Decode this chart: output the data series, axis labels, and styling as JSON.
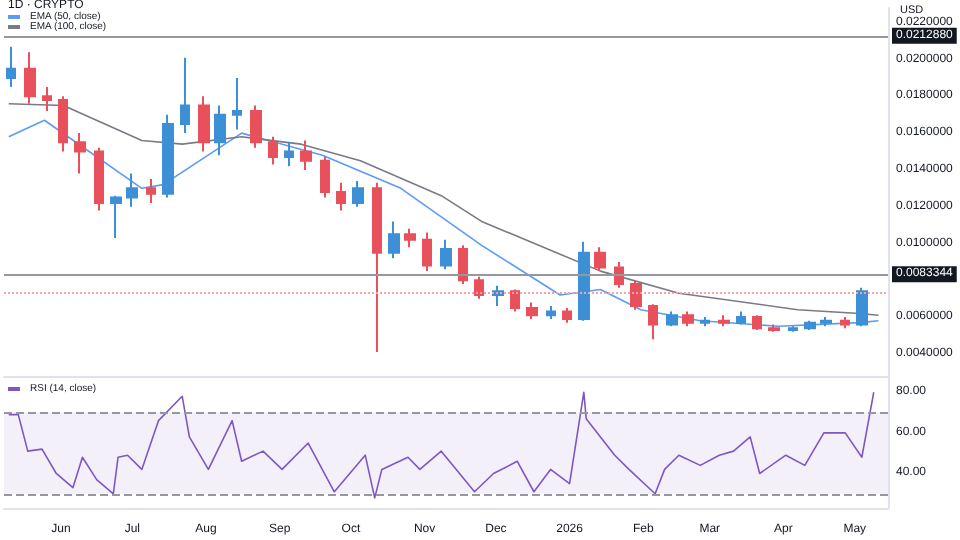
{
  "chart_data": [
    {
      "type": "candlestick",
      "title": "1D · CRYPTO",
      "ylabel": "USD",
      "x": [
        "2025-05-11",
        "2025-05-19",
        "2025-05-26",
        "2025-06-02",
        "2025-06-09",
        "2025-06-17",
        "2025-06-24",
        "2025-07-01",
        "2025-07-09",
        "2025-07-16",
        "2025-07-23",
        "2025-07-31",
        "2025-08-07",
        "2025-08-14",
        "2025-08-22",
        "2025-08-29",
        "2025-09-05",
        "2025-09-12",
        "2025-09-20",
        "2025-09-27",
        "2025-10-04",
        "2025-10-12",
        "2025-10-19",
        "2025-10-26",
        "2025-11-02",
        "2025-11-10",
        "2025-11-17",
        "2025-11-24",
        "2025-12-02",
        "2025-12-09",
        "2025-12-16",
        "2025-12-24",
        "2025-12-31",
        "2026-01-07",
        "2026-01-14",
        "2026-01-22",
        "2026-01-29",
        "2026-02-05",
        "2026-02-13",
        "2026-02-20",
        "2026-02-27",
        "2026-03-07",
        "2026-03-14",
        "2026-03-21",
        "2026-03-28",
        "2026-04-05",
        "2026-04-12",
        "2026-04-19",
        "2026-04-27",
        "2026-05-04"
      ],
      "ohlc": [
        [
          0.019,
          0.0207,
          0.0185,
          0.0195
        ],
        [
          0.0195,
          0.0204,
          0.0176,
          0.018
        ],
        [
          0.018,
          0.0185,
          0.0172,
          0.0178
        ],
        [
          0.0178,
          0.018,
          0.015,
          0.0155
        ],
        [
          0.0155,
          0.016,
          0.0138,
          0.015
        ],
        [
          0.015,
          0.0152,
          0.0118,
          0.0122
        ],
        [
          0.0122,
          0.0126,
          0.0103,
          0.0125
        ],
        [
          0.0125,
          0.0138,
          0.012,
          0.013
        ],
        [
          0.013,
          0.0135,
          0.0122,
          0.0127
        ],
        [
          0.0127,
          0.017,
          0.0125,
          0.0165
        ],
        [
          0.0165,
          0.0201,
          0.016,
          0.0175
        ],
        [
          0.0175,
          0.018,
          0.015,
          0.0155
        ],
        [
          0.0155,
          0.0175,
          0.0148,
          0.017
        ],
        [
          0.017,
          0.019,
          0.0162,
          0.0172
        ],
        [
          0.0172,
          0.0175,
          0.0152,
          0.0155
        ],
        [
          0.0155,
          0.0158,
          0.0143,
          0.0147
        ],
        [
          0.0147,
          0.0155,
          0.0142,
          0.015
        ],
        [
          0.015,
          0.0156,
          0.014,
          0.0145
        ],
        [
          0.0145,
          0.0147,
          0.0125,
          0.0128
        ],
        [
          0.0128,
          0.0133,
          0.0118,
          0.0122
        ],
        [
          0.0122,
          0.0134,
          0.012,
          0.013
        ],
        [
          0.013,
          0.0133,
          0.0041,
          0.0095
        ],
        [
          0.0095,
          0.0112,
          0.0092,
          0.0105
        ],
        [
          0.0105,
          0.0108,
          0.0098,
          0.0102
        ],
        [
          0.0102,
          0.0106,
          0.0085,
          0.0088
        ],
        [
          0.0088,
          0.0102,
          0.0086,
          0.0097
        ],
        [
          0.0097,
          0.0099,
          0.0078,
          0.008
        ],
        [
          0.008,
          0.0082,
          0.007,
          0.0072
        ],
        [
          0.0072,
          0.0077,
          0.0066,
          0.0074
        ],
        [
          0.0074,
          0.0075,
          0.0063,
          0.0065
        ],
        [
          0.0065,
          0.0068,
          0.0059,
          0.0061
        ],
        [
          0.0061,
          0.0066,
          0.0059,
          0.0063
        ],
        [
          0.0063,
          0.0065,
          0.0057,
          0.0059
        ],
        [
          0.0059,
          0.0101,
          0.0058,
          0.0095
        ],
        [
          0.0095,
          0.0098,
          0.0085,
          0.0087
        ],
        [
          0.0087,
          0.009,
          0.0076,
          0.0078
        ],
        [
          0.0078,
          0.008,
          0.0064,
          0.0066
        ],
        [
          0.0066,
          0.0067,
          0.0048,
          0.0056
        ],
        [
          0.0056,
          0.0063,
          0.0055,
          0.0061
        ],
        [
          0.0061,
          0.0063,
          0.0055,
          0.0057
        ],
        [
          0.0057,
          0.006,
          0.0055,
          0.0058
        ],
        [
          0.0058,
          0.0061,
          0.0055,
          0.0057
        ],
        [
          0.0057,
          0.0063,
          0.0056,
          0.006
        ],
        [
          0.006,
          0.0061,
          0.0053,
          0.0054
        ],
        [
          0.0054,
          0.0056,
          0.0052,
          0.0053
        ],
        [
          0.0053,
          0.0055,
          0.0052,
          0.0054
        ],
        [
          0.0054,
          0.0058,
          0.0053,
          0.0057
        ],
        [
          0.0057,
          0.006,
          0.0055,
          0.0058
        ],
        [
          0.0058,
          0.006,
          0.0054,
          0.0056
        ],
        [
          0.0056,
          0.0076,
          0.0055,
          0.0074
        ]
      ],
      "series": [
        {
          "type": "line",
          "name": "EMA (50, close)",
          "color": "#5b9cf6",
          "x": [
            "2025-05-10",
            "2025-05-25",
            "2025-07-05",
            "2025-07-14",
            "2025-08-16",
            "2025-09-19",
            "2025-10-22",
            "2025-11-25",
            "2025-12-28",
            "2026-01-14",
            "2026-01-31",
            "2026-02-25",
            "2026-03-30",
            "2026-05-03",
            "2026-05-11"
          ],
          "values": [
            0.0158,
            0.0167,
            0.013,
            0.0132,
            0.016,
            0.0148,
            0.013,
            0.0099,
            0.0072,
            0.0075,
            0.0064,
            0.0058,
            0.0055,
            0.0057,
            0.0058
          ]
        },
        {
          "type": "line",
          "name": "EMA (100, close)",
          "color": "#787b86",
          "x": [
            "2025-05-10",
            "2025-06-02",
            "2025-07-05",
            "2025-07-22",
            "2025-08-16",
            "2025-09-10",
            "2025-10-05",
            "2025-11-08",
            "2025-11-25",
            "2026-01-14",
            "2026-02-16",
            "2026-04-07",
            "2026-05-03",
            "2026-05-11"
          ],
          "values": [
            0.0176,
            0.0175,
            0.0156,
            0.0154,
            0.0158,
            0.0154,
            0.0145,
            0.0126,
            0.0112,
            0.0085,
            0.0073,
            0.0064,
            0.0062,
            0.0061
          ]
        }
      ],
      "xlim": [
        "2025-05-08",
        "2026-05-15"
      ],
      "ylim": [
        0.0028,
        0.0228
      ],
      "yticks": [
        {
          "value": 0.004,
          "label": "0.0040000"
        },
        {
          "value": 0.006,
          "label": "0.0060000"
        },
        {
          "value": 0.01,
          "label": "0.0100000"
        },
        {
          "value": 0.012,
          "label": "0.0120000"
        },
        {
          "value": 0.014,
          "label": "0.0140000"
        },
        {
          "value": 0.016,
          "label": "0.0160000"
        },
        {
          "value": 0.018,
          "label": "0.0180000"
        },
        {
          "value": 0.02,
          "label": "0.0200000"
        },
        {
          "value": 0.022,
          "label": "0.0220000"
        }
      ],
      "ref_lines": [
        {
          "axis": "y",
          "value": 0.021288,
          "label": "0.0212880",
          "color": "#9598a1",
          "line_style": "solid"
        },
        {
          "axis": "y",
          "value": 0.0083344,
          "label": "0.0083344",
          "color": "#9598a1",
          "line_style": "solid"
        },
        {
          "axis": "y",
          "value": 0.0073,
          "label": null,
          "color": "#f7a1a8",
          "line_style": "dotted"
        }
      ],
      "tick_labels": "y",
      "legend": "top left",
      "grid": false,
      "marker": "none"
    },
    {
      "type": "line",
      "series": [
        {
          "name": "RSI (14, close)",
          "color": "#7e57c2",
          "x": [
            "2025-05-10",
            "2025-05-14",
            "2025-05-18",
            "2025-05-24",
            "2025-05-30",
            "2025-06-06",
            "2025-06-10",
            "2025-06-16",
            "2025-06-23",
            "2025-06-25",
            "2025-06-29",
            "2025-07-05",
            "2025-07-12",
            "2025-07-22",
            "2025-07-25",
            "2025-08-02",
            "2025-08-12",
            "2025-08-16",
            "2025-08-25",
            "2025-09-02",
            "2025-09-13",
            "2025-09-24",
            "2025-10-07",
            "2025-10-11",
            "2025-10-14",
            "2025-10-25",
            "2025-10-30",
            "2025-11-08",
            "2025-11-22",
            "2025-11-30",
            "2025-12-10",
            "2025-12-17",
            "2025-12-24",
            "2026-01-01",
            "2026-01-07",
            "2026-01-08",
            "2026-01-20",
            "2026-01-26",
            "2026-02-06",
            "2026-02-10",
            "2026-02-16",
            "2026-02-25",
            "2026-03-05",
            "2026-03-11",
            "2026-03-18",
            "2026-03-22",
            "2026-04-02",
            "2026-04-10",
            "2026-04-18",
            "2026-04-27",
            "2026-05-04",
            "2026-05-09"
          ],
          "values": [
            69,
            69,
            51,
            52,
            40,
            33,
            48,
            37,
            30,
            48,
            49,
            42,
            66,
            78,
            58,
            42,
            66,
            46,
            51,
            42,
            55,
            31,
            49,
            28,
            42,
            48,
            42,
            51,
            31,
            40,
            46,
            31,
            42,
            35,
            80,
            67,
            49,
            42,
            30,
            42,
            49,
            44,
            49,
            51,
            58,
            40,
            49,
            44,
            60,
            60,
            48,
            80
          ]
        }
      ],
      "xlim": [
        "2025-05-08",
        "2026-05-15"
      ],
      "ylim": [
        23,
        88
      ],
      "yticks": [
        {
          "value": 40,
          "label": "40.00"
        },
        {
          "value": 60,
          "label": "60.00"
        },
        {
          "value": 80,
          "label": "80.00"
        }
      ],
      "xticks": [
        {
          "value": "2025-06-01",
          "label": "Jun"
        },
        {
          "value": "2025-07-01",
          "label": "Jul"
        },
        {
          "value": "2025-08-01",
          "label": "Aug"
        },
        {
          "value": "2025-09-01",
          "label": "Sep"
        },
        {
          "value": "2025-10-01",
          "label": "Oct"
        },
        {
          "value": "2025-11-01",
          "label": "Nov"
        },
        {
          "value": "2025-12-01",
          "label": "Dec"
        },
        {
          "value": "2026-01-01",
          "label": "2026"
        },
        {
          "value": "2026-02-01",
          "label": "Feb"
        },
        {
          "value": "2026-03-01",
          "label": "Mar"
        },
        {
          "value": "2026-04-01",
          "label": "Apr"
        },
        {
          "value": "2026-05-01",
          "label": "May"
        }
      ],
      "ref_lines": [
        {
          "axis": "y",
          "value": 70,
          "label": null,
          "color": "#9598a1",
          "line_style": "dashed"
        },
        {
          "axis": "y",
          "value": 30,
          "label": null,
          "color": "#9598a1",
          "line_style": "dashed"
        }
      ],
      "bands": [
        {
          "axis": "y",
          "from": 30,
          "to": 70,
          "label": null,
          "color": "#f3f0fa"
        }
      ],
      "legend": "top left",
      "grid": false,
      "marker": "none"
    }
  ]
}
